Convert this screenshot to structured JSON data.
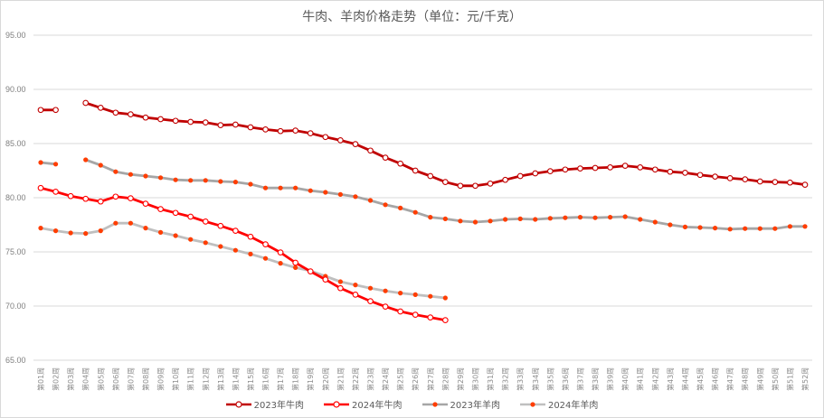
{
  "chart_title": "牛肉、羊肉价格走势（单位：元/千克）",
  "legend": [
    {
      "label": "2023年牛肉",
      "color": "#c00000",
      "marker": "hollow-circle"
    },
    {
      "label": "2024年牛肉",
      "color": "#ff0000",
      "marker": "hollow-circle"
    },
    {
      "label": "2023年羊肉",
      "color": "#a6a6a6",
      "marker": "filled-dot",
      "marker_color": "#ff3d00"
    },
    {
      "label": "2024年羊肉",
      "color": "#bfbfbf",
      "marker": "filled-dot",
      "marker_color": "#ff3d00"
    }
  ],
  "y_ticks": [
    "95.00",
    "90.00",
    "85.00",
    "80.00",
    "75.00",
    "70.00",
    "65.00"
  ],
  "chart_data": {
    "type": "line",
    "title": "牛肉、羊肉价格走势（单位：元/千克）",
    "xlabel": "",
    "ylabel": "元/千克",
    "ylim": [
      65,
      95
    ],
    "grid": true,
    "legend_position": "bottom",
    "categories": [
      "第01周",
      "第02周",
      "第03周",
      "第04周",
      "第05周",
      "第06周",
      "第07周",
      "第08周",
      "第09周",
      "第10周",
      "第11周",
      "第12周",
      "第13周",
      "第14周",
      "第15周",
      "第16周",
      "第17周",
      "第18周",
      "第19周",
      "第20周",
      "第21周",
      "第22周",
      "第23周",
      "第24周",
      "第25周",
      "第26周",
      "第27周",
      "第28周",
      "第29周",
      "第30周",
      "第31周",
      "第32周",
      "第33周",
      "第34周",
      "第35周",
      "第36周",
      "第37周",
      "第38周",
      "第39周",
      "第40周",
      "第41周",
      "第42周",
      "第43周",
      "第44周",
      "第45周",
      "第46周",
      "第47周",
      "第48周",
      "第49周",
      "第50周",
      "第51周",
      "第52周"
    ],
    "series": [
      {
        "name": "2023年牛肉",
        "values": [
          88.1,
          88.1,
          null,
          88.75,
          88.3,
          87.85,
          87.7,
          87.4,
          87.25,
          87.1,
          87.0,
          86.95,
          86.7,
          86.75,
          86.5,
          86.3,
          86.15,
          86.2,
          85.95,
          85.6,
          85.3,
          84.95,
          84.35,
          83.7,
          83.15,
          82.5,
          82.0,
          81.45,
          81.1,
          81.1,
          81.3,
          81.65,
          82.0,
          82.25,
          82.45,
          82.6,
          82.7,
          82.75,
          82.8,
          82.95,
          82.8,
          82.6,
          82.4,
          82.3,
          82.1,
          81.95,
          81.8,
          81.7,
          81.5,
          81.45,
          81.4,
          81.2
        ]
      },
      {
        "name": "2024年牛肉",
        "values": [
          80.9,
          80.55,
          80.15,
          79.9,
          79.65,
          80.1,
          79.95,
          79.45,
          78.95,
          78.6,
          78.25,
          77.8,
          77.4,
          76.95,
          76.4,
          75.7,
          74.95,
          74.0,
          73.2,
          72.45,
          71.65,
          71.05,
          70.45,
          69.95,
          69.5,
          69.2,
          68.95,
          68.7,
          null,
          null,
          null,
          null,
          null,
          null,
          null,
          null,
          null,
          null,
          null,
          null,
          null,
          null,
          null,
          null,
          null,
          null,
          null,
          null,
          null,
          null,
          null,
          null
        ]
      },
      {
        "name": "2023年羊肉",
        "values": [
          83.25,
          83.1,
          null,
          83.5,
          83.0,
          82.4,
          82.15,
          82.0,
          81.85,
          81.65,
          81.6,
          81.6,
          81.5,
          81.45,
          81.25,
          80.9,
          80.9,
          80.9,
          80.65,
          80.5,
          80.3,
          80.1,
          79.75,
          79.35,
          79.05,
          78.65,
          78.2,
          78.05,
          77.85,
          77.75,
          77.85,
          78.0,
          78.05,
          78.0,
          78.1,
          78.15,
          78.2,
          78.15,
          78.2,
          78.25,
          78.0,
          77.75,
          77.5,
          77.3,
          77.25,
          77.2,
          77.1,
          77.15,
          77.15,
          77.15,
          77.35,
          77.35
        ]
      },
      {
        "name": "2024年羊肉",
        "values": [
          77.2,
          76.95,
          76.75,
          76.7,
          76.95,
          77.65,
          77.65,
          77.2,
          76.8,
          76.5,
          76.15,
          75.85,
          75.5,
          75.15,
          74.8,
          74.4,
          73.95,
          73.55,
          73.25,
          72.75,
          72.25,
          71.95,
          71.65,
          71.4,
          71.2,
          71.05,
          70.9,
          70.75,
          null,
          null,
          null,
          null,
          null,
          null,
          null,
          null,
          null,
          null,
          null,
          null,
          null,
          null,
          null,
          null,
          null,
          null,
          null,
          null,
          null,
          null,
          null,
          null
        ]
      }
    ]
  }
}
